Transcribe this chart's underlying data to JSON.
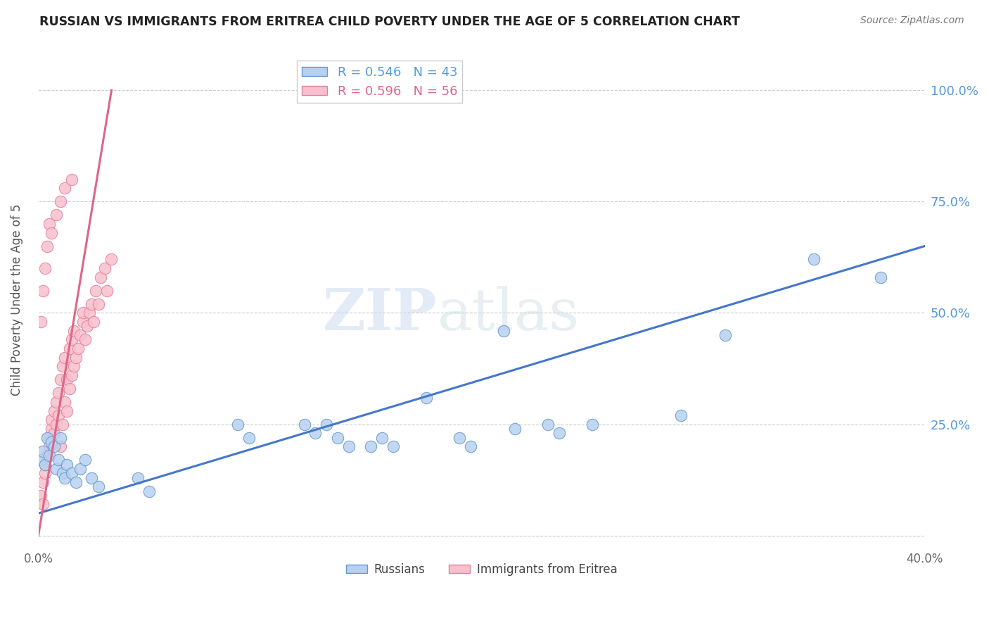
{
  "title": "RUSSIAN VS IMMIGRANTS FROM ERITREA CHILD POVERTY UNDER THE AGE OF 5 CORRELATION CHART",
  "source": "Source: ZipAtlas.com",
  "ylabel": "Child Poverty Under the Age of 5",
  "watermark_zip": "ZIP",
  "watermark_atlas": "atlas",
  "russians_R": 0.546,
  "russians_N": 43,
  "eritrea_R": 0.596,
  "eritrea_N": 56,
  "blue_dot_face": "#b8d0f0",
  "blue_dot_edge": "#6699cc",
  "pink_dot_face": "#f8c0cc",
  "pink_dot_edge": "#e080a0",
  "blue_line_color": "#4477cc",
  "pink_line_color": "#dd6688",
  "right_axis_color": "#5599dd",
  "xlim": [
    0.0,
    0.4
  ],
  "ylim": [
    -0.02,
    1.08
  ],
  "yticks": [
    0.0,
    0.25,
    0.5,
    0.75,
    1.0
  ],
  "ytick_labels": [
    "",
    "25.0%",
    "50.0%",
    "75.0%",
    "100.0%"
  ],
  "xticks": [
    0.0,
    0.05,
    0.1,
    0.15,
    0.2,
    0.25,
    0.3,
    0.35,
    0.4
  ],
  "xtick_labels": [
    "0.0%",
    "",
    "",
    "",
    "",
    "",
    "",
    "",
    "40.0%"
  ],
  "russians_x": [
    0.001,
    0.002,
    0.003,
    0.004,
    0.005,
    0.006,
    0.007,
    0.008,
    0.009,
    0.01,
    0.011,
    0.012,
    0.013,
    0.015,
    0.017,
    0.019,
    0.021,
    0.024,
    0.027,
    0.045,
    0.05,
    0.09,
    0.095,
    0.12,
    0.125,
    0.13,
    0.135,
    0.14,
    0.15,
    0.155,
    0.16,
    0.175,
    0.19,
    0.195,
    0.21,
    0.215,
    0.23,
    0.235,
    0.25,
    0.29,
    0.31,
    0.35,
    0.38
  ],
  "russians_y": [
    0.17,
    0.19,
    0.16,
    0.22,
    0.18,
    0.21,
    0.2,
    0.15,
    0.17,
    0.22,
    0.14,
    0.13,
    0.16,
    0.14,
    0.12,
    0.15,
    0.17,
    0.13,
    0.11,
    0.13,
    0.1,
    0.25,
    0.22,
    0.25,
    0.23,
    0.25,
    0.22,
    0.2,
    0.2,
    0.22,
    0.2,
    0.31,
    0.22,
    0.2,
    0.46,
    0.24,
    0.25,
    0.23,
    0.25,
    0.27,
    0.45,
    0.62,
    0.58
  ],
  "eritrea_x": [
    0.001,
    0.002,
    0.002,
    0.003,
    0.003,
    0.004,
    0.005,
    0.005,
    0.006,
    0.006,
    0.007,
    0.007,
    0.008,
    0.008,
    0.009,
    0.009,
    0.01,
    0.01,
    0.011,
    0.011,
    0.012,
    0.012,
    0.013,
    0.013,
    0.014,
    0.014,
    0.015,
    0.015,
    0.016,
    0.016,
    0.017,
    0.018,
    0.019,
    0.02,
    0.02,
    0.021,
    0.022,
    0.023,
    0.024,
    0.025,
    0.026,
    0.027,
    0.028,
    0.03,
    0.031,
    0.033,
    0.001,
    0.002,
    0.003,
    0.004,
    0.005,
    0.006,
    0.008,
    0.01,
    0.012,
    0.015
  ],
  "eritrea_y": [
    0.09,
    0.07,
    0.12,
    0.14,
    0.16,
    0.18,
    0.2,
    0.22,
    0.24,
    0.26,
    0.23,
    0.28,
    0.25,
    0.3,
    0.27,
    0.32,
    0.2,
    0.35,
    0.25,
    0.38,
    0.3,
    0.4,
    0.28,
    0.35,
    0.33,
    0.42,
    0.36,
    0.44,
    0.38,
    0.46,
    0.4,
    0.42,
    0.45,
    0.48,
    0.5,
    0.44,
    0.47,
    0.5,
    0.52,
    0.48,
    0.55,
    0.52,
    0.58,
    0.6,
    0.55,
    0.62,
    0.48,
    0.55,
    0.6,
    0.65,
    0.7,
    0.68,
    0.72,
    0.75,
    0.78,
    0.8
  ],
  "blue_line_x0": 0.0,
  "blue_line_y0": 0.05,
  "blue_line_x1": 0.4,
  "blue_line_y1": 0.65,
  "pink_line_x0": 0.0,
  "pink_line_y0": 0.0,
  "pink_line_x1": 0.033,
  "pink_line_y1": 1.0
}
